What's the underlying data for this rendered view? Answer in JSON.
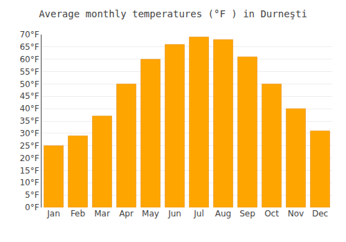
{
  "chart_data": {
    "type": "bar",
    "title": "Average monthly temperatures (°F ) in Durneşti",
    "categories": [
      "Jan",
      "Feb",
      "Mar",
      "Apr",
      "May",
      "Jun",
      "Jul",
      "Aug",
      "Sep",
      "Oct",
      "Nov",
      "Dec"
    ],
    "values": [
      25,
      29,
      37,
      50,
      60,
      66,
      69,
      68,
      61,
      50,
      40,
      31
    ],
    "color": "#FFA500",
    "ylim": [
      0,
      70
    ],
    "yticks": [
      {
        "value": 0,
        "label": "0°F"
      },
      {
        "value": 5,
        "label": "5°F"
      },
      {
        "value": 10,
        "label": "10°F"
      },
      {
        "value": 15,
        "label": "15°F"
      },
      {
        "value": 20,
        "label": "20°F"
      },
      {
        "value": 25,
        "label": "25°F"
      },
      {
        "value": 30,
        "label": "30°F"
      },
      {
        "value": 35,
        "label": "35°F"
      },
      {
        "value": 40,
        "label": "40°F"
      },
      {
        "value": 45,
        "label": "45°F"
      },
      {
        "value": 50,
        "label": "50°F"
      },
      {
        "value": 55,
        "label": "55°F"
      },
      {
        "value": 60,
        "label": "60°F"
      },
      {
        "value": 65,
        "label": "65°F"
      },
      {
        "value": 70,
        "label": "70°F"
      }
    ],
    "grid": true
  }
}
